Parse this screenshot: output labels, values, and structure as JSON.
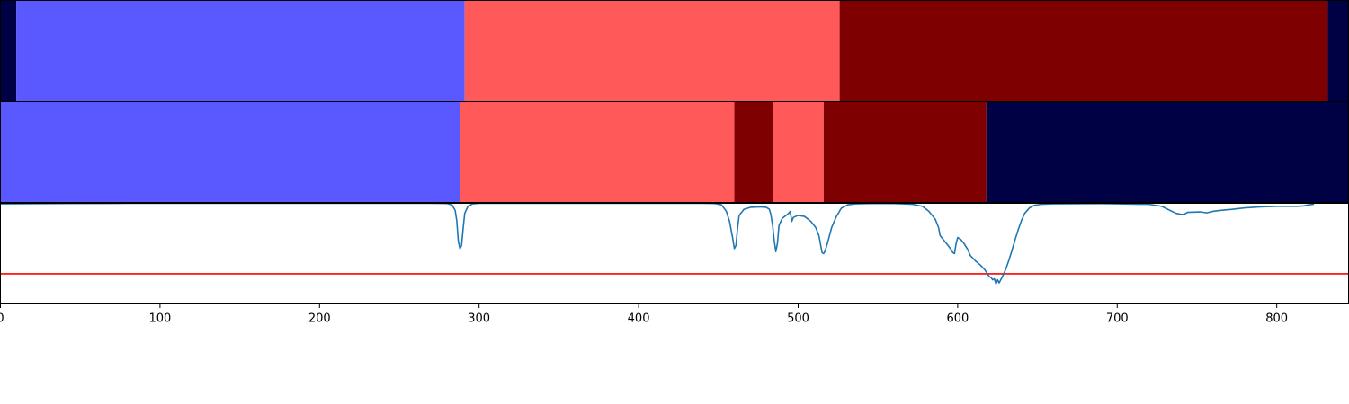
{
  "chart_data": {
    "type": "segmentation-timeline",
    "xlim": [
      0,
      845
    ],
    "x_ticks": [
      0,
      100,
      200,
      300,
      400,
      500,
      600,
      700,
      800
    ],
    "x_tick_labels": [
      "0",
      "100",
      "200",
      "300",
      "400",
      "500",
      "600",
      "700",
      "800"
    ],
    "palette": {
      "navy": "#000044",
      "blue": "#5959ff",
      "red": "#ff5959",
      "darkred": "#7f0000"
    },
    "rows": [
      {
        "segments": [
          {
            "start": 0,
            "end": 10,
            "color": "navy"
          },
          {
            "start": 10,
            "end": 291,
            "color": "blue"
          },
          {
            "start": 291,
            "end": 526,
            "color": "red"
          },
          {
            "start": 526,
            "end": 832,
            "color": "darkred"
          },
          {
            "start": 832,
            "end": 845,
            "color": "navy"
          }
        ]
      },
      {
        "segments": [
          {
            "start": 0,
            "end": 288,
            "color": "blue"
          },
          {
            "start": 288,
            "end": 460,
            "color": "red"
          },
          {
            "start": 460,
            "end": 484,
            "color": "darkred"
          },
          {
            "start": 484,
            "end": 516,
            "color": "red"
          },
          {
            "start": 516,
            "end": 618,
            "color": "darkred"
          },
          {
            "start": 618,
            "end": 845,
            "color": "navy"
          }
        ]
      }
    ],
    "signal": {
      "color": "#1f77b4",
      "ylim": [
        0,
        1
      ],
      "threshold": 0.3,
      "threshold_color": "#ff0000",
      "points": [
        [
          0,
          0.995
        ],
        [
          40,
          0.998
        ],
        [
          80,
          1.0
        ],
        [
          150,
          1.0
        ],
        [
          220,
          1.0
        ],
        [
          270,
          1.0
        ],
        [
          280,
          0.998
        ],
        [
          283,
          0.985
        ],
        [
          285,
          0.93
        ],
        [
          286,
          0.83
        ],
        [
          287,
          0.62
        ],
        [
          288,
          0.55
        ],
        [
          289,
          0.58
        ],
        [
          290,
          0.75
        ],
        [
          291,
          0.9
        ],
        [
          293,
          0.97
        ],
        [
          296,
          0.995
        ],
        [
          300,
          1.0
        ],
        [
          400,
          1.0
        ],
        [
          440,
          1.0
        ],
        [
          448,
          0.998
        ],
        [
          452,
          0.985
        ],
        [
          455,
          0.92
        ],
        [
          457,
          0.82
        ],
        [
          459,
          0.65
        ],
        [
          460,
          0.55
        ],
        [
          461,
          0.58
        ],
        [
          462,
          0.75
        ],
        [
          463,
          0.88
        ],
        [
          466,
          0.94
        ],
        [
          470,
          0.96
        ],
        [
          476,
          0.965
        ],
        [
          480,
          0.96
        ],
        [
          482,
          0.94
        ],
        [
          483,
          0.88
        ],
        [
          484,
          0.78
        ],
        [
          485,
          0.63
        ],
        [
          486,
          0.52
        ],
        [
          487,
          0.6
        ],
        [
          488,
          0.78
        ],
        [
          490,
          0.85
        ],
        [
          494,
          0.9
        ],
        [
          495,
          0.92
        ],
        [
          496,
          0.82
        ],
        [
          497,
          0.86
        ],
        [
          500,
          0.88
        ],
        [
          504,
          0.87
        ],
        [
          508,
          0.82
        ],
        [
          511,
          0.76
        ],
        [
          513,
          0.68
        ],
        [
          515,
          0.51
        ],
        [
          516,
          0.5
        ],
        [
          517,
          0.53
        ],
        [
          519,
          0.64
        ],
        [
          521,
          0.76
        ],
        [
          524,
          0.87
        ],
        [
          527,
          0.95
        ],
        [
          531,
          0.985
        ],
        [
          536,
          0.995
        ],
        [
          545,
          0.998
        ],
        [
          560,
          0.998
        ],
        [
          572,
          0.99
        ],
        [
          578,
          0.97
        ],
        [
          582,
          0.92
        ],
        [
          584,
          0.88
        ],
        [
          586,
          0.84
        ],
        [
          588,
          0.76
        ],
        [
          589,
          0.68
        ],
        [
          591,
          0.64
        ],
        [
          593,
          0.6
        ],
        [
          595,
          0.56
        ],
        [
          597,
          0.51
        ],
        [
          598,
          0.5
        ],
        [
          599,
          0.6
        ],
        [
          600,
          0.66
        ],
        [
          602,
          0.64
        ],
        [
          604,
          0.6
        ],
        [
          606,
          0.55
        ],
        [
          608,
          0.48
        ],
        [
          611,
          0.43
        ],
        [
          614,
          0.39
        ],
        [
          617,
          0.34
        ],
        [
          619,
          0.29
        ],
        [
          620,
          0.27
        ],
        [
          621,
          0.26
        ],
        [
          622,
          0.24
        ],
        [
          623,
          0.25
        ],
        [
          624,
          0.2
        ],
        [
          625,
          0.24
        ],
        [
          626,
          0.21
        ],
        [
          628,
          0.27
        ],
        [
          630,
          0.34
        ],
        [
          632,
          0.43
        ],
        [
          634,
          0.53
        ],
        [
          636,
          0.64
        ],
        [
          638,
          0.74
        ],
        [
          640,
          0.83
        ],
        [
          642,
          0.9
        ],
        [
          645,
          0.955
        ],
        [
          648,
          0.98
        ],
        [
          652,
          0.99
        ],
        [
          660,
          0.995
        ],
        [
          690,
          0.997
        ],
        [
          700,
          0.995
        ],
        [
          720,
          0.99
        ],
        [
          728,
          0.97
        ],
        [
          733,
          0.93
        ],
        [
          737,
          0.9
        ],
        [
          740,
          0.89
        ],
        [
          742,
          0.89
        ],
        [
          744,
          0.91
        ],
        [
          752,
          0.915
        ],
        [
          756,
          0.905
        ],
        [
          760,
          0.92
        ],
        [
          765,
          0.93
        ],
        [
          772,
          0.94
        ],
        [
          780,
          0.955
        ],
        [
          790,
          0.965
        ],
        [
          800,
          0.97
        ],
        [
          813,
          0.97
        ],
        [
          817,
          0.975
        ],
        [
          820,
          0.985
        ],
        [
          823,
          0.99
        ]
      ]
    }
  }
}
